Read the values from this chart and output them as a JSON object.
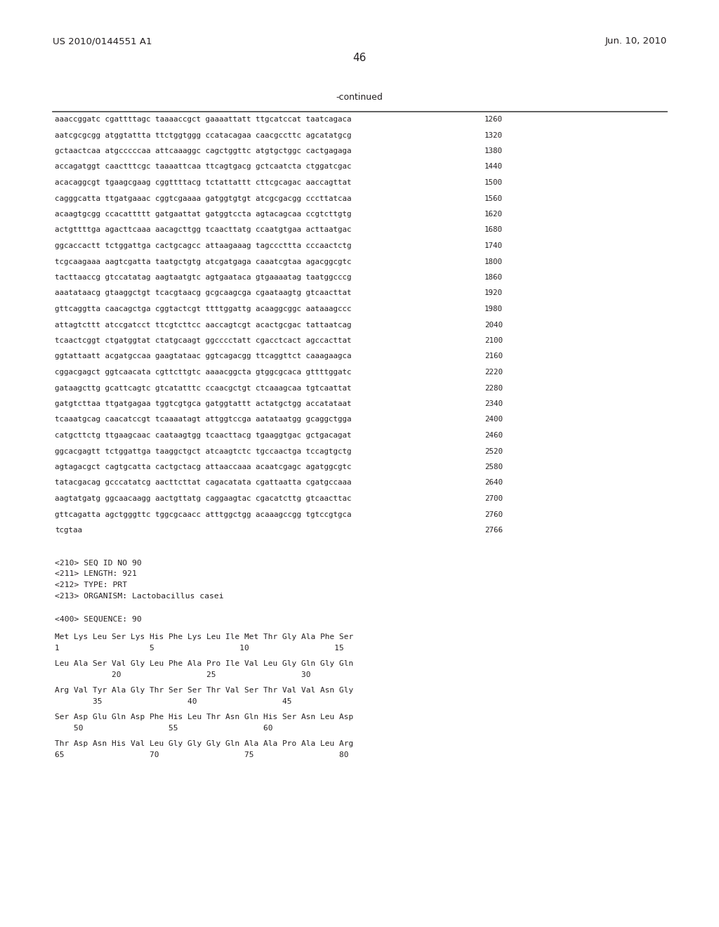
{
  "header_left": "US 2010/0144551 A1",
  "header_right": "Jun. 10, 2010",
  "page_number": "46",
  "continued_label": "-continued",
  "background_color": "#ffffff",
  "text_color": "#231f20",
  "sequence_lines": [
    [
      "aaaccggatc cgattttagc taaaaccgct gaaaattatt ttgcatccat taatcagaca",
      "1260"
    ],
    [
      "aatcgcgcgg atggtattta ttctggtggg ccatacagaa caacgccttc agcatatgcg",
      "1320"
    ],
    [
      "gctaactcaa atgcccccaa attcaaaggc cagctggttc atgtgctggc cactgagaga",
      "1380"
    ],
    [
      "accagatggt caactttcgc taaaattcaa ttcagtgacg gctcaatcta ctggatcgac",
      "1440"
    ],
    [
      "acacaggcgt tgaagcgaag cggttttacg tctattattt cttcgcagac aaccagttat",
      "1500"
    ],
    [
      "cagggcatta ttgatgaaac cggtcgaaaa gatggtgtgt atcgcgacgg cccttatcaa",
      "1560"
    ],
    [
      "acaagtgcgg ccacattttt gatgaattat gatggtccta agtacagcaa ccgtcttgtg",
      "1620"
    ],
    [
      "actgttttga agacttcaaa aacagcttgg tcaacttatg ccaatgtgaa acttaatgac",
      "1680"
    ],
    [
      "ggcaccactt tctggattga cactgcagcc attaagaaag tagcccttta cccaactctg",
      "1740"
    ],
    [
      "tcgcaagaaa aagtcgatta taatgctgtg atcgatgaga caaatcgtaa agacggcgtc",
      "1800"
    ],
    [
      "tacttaaccg gtccatatag aagtaatgtc agtgaataca gtgaaaatag taatggcccg",
      "1860"
    ],
    [
      "aaatataacg gtaaggctgt tcacgtaacg gcgcaagcga cgaataagtg gtcaacttat",
      "1920"
    ],
    [
      "gttcaggtta caacagctga cggtactcgt ttttggattg acaaggcggc aataaagccc",
      "1980"
    ],
    [
      "attagtcttt atccgatcct ttcgtcttcc aaccagtcgt acactgcgac tattaatcag",
      "2040"
    ],
    [
      "tcaactcggt ctgatggtat ctatgcaagt ggcccctatt cgacctcact agccacttat",
      "2100"
    ],
    [
      "ggtattaatt acgatgccaa gaagtataac ggtcagacgg ttcaggttct caaagaagca",
      "2160"
    ],
    [
      "cggacgagct ggtcaacata cgttcttgtc aaaacggcta gtggcgcaca gttttggatc",
      "2220"
    ],
    [
      "gataagcttg gcattcagtc gtcatatttc ccaacgctgt ctcaaagcaa tgtcaattat",
      "2280"
    ],
    [
      "gatgtcttaa ttgatgagaa tggtcgtgca gatggtattt actatgctgg accatataat",
      "2340"
    ],
    [
      "tcaaatgcag caacatccgt tcaaaatagt attggtccga aatataatgg gcaggctgga",
      "2400"
    ],
    [
      "catgcttctg ttgaagcaac caataagtgg tcaacttacg tgaaggtgac gctgacagat",
      "2460"
    ],
    [
      "ggcacgagtt tctggattga taaggctgct atcaagtctc tgccaactga tccagtgctg",
      "2520"
    ],
    [
      "agtagacgct cagtgcatta cactgctacg attaaccaaa acaatcgagc agatggcgtc",
      "2580"
    ],
    [
      "tatacgacag gcccatatcg aacttcttat cagacatata cgattaatta cgatgccaaa",
      "2640"
    ],
    [
      "aagtatgatg ggcaacaagg aactgttatg caggaagtac cgacatcttg gtcaacttac",
      "2700"
    ],
    [
      "gttcagatta agctgggttc tggcgcaacc atttggctgg acaaagccgg tgtccgtgca",
      "2760"
    ],
    [
      "tcgtaa",
      "2766"
    ]
  ],
  "metadata_lines": [
    "<210> SEQ ID NO 90",
    "<211> LENGTH: 921",
    "<212> TYPE: PRT",
    "<213> ORGANISM: Lactobacillus casei"
  ],
  "sequence_label": "<400> SEQUENCE: 90",
  "protein_lines": [
    {
      "amino": "Met Lys Leu Ser Lys His Phe Lys Leu Ile Met Thr Gly Ala Phe Ser",
      "numbers": "1                   5                  10                  15"
    },
    {
      "amino": "Leu Ala Ser Val Gly Leu Phe Ala Pro Ile Val Leu Gly Gln Gly Gln",
      "numbers": "            20                  25                  30"
    },
    {
      "amino": "Arg Val Tyr Ala Gly Thr Ser Ser Thr Val Ser Thr Val Val Asn Gly",
      "numbers": "        35                  40                  45"
    },
    {
      "amino": "Ser Asp Glu Gln Asp Phe His Leu Thr Asn Gln His Ser Asn Leu Asp",
      "numbers": "    50                  55                  60"
    },
    {
      "amino": "Thr Asp Asn His Val Leu Gly Gly Gly Gln Ala Ala Pro Ala Leu Arg",
      "numbers": "65                  70                  75                  80"
    }
  ]
}
